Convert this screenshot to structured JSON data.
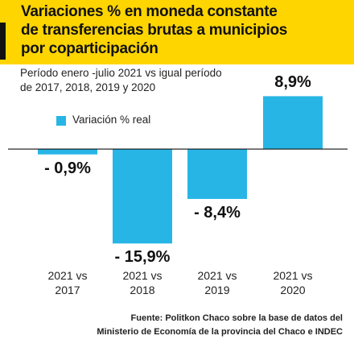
{
  "chart_data": {
    "type": "bar",
    "title": [
      "Variaciones % en moneda constante",
      "de transferencias brutas a municipios",
      "por coparticipación"
    ],
    "subtitle": [
      "Período enero -julio 2021 vs igual período",
      "de 2017, 2018, 2019 y 2020"
    ],
    "categories": [
      "2021 vs 2017",
      "2021 vs 2018",
      "2021 vs 2019",
      "2021 vs 2020"
    ],
    "series": [
      {
        "name": "Variación % real",
        "color": "#27b5e6",
        "values": [
          -0.9,
          -15.9,
          -8.4,
          8.9
        ],
        "value_labels": [
          "- 0,9%",
          "- 15,9%",
          "- 8,4%",
          "8,9%"
        ]
      }
    ],
    "ylim": [
      -16,
      9.5
    ],
    "source": [
      "Fuente: Politkon Chaco sobre la base de datos del",
      "Ministerio de Economía de la provincia del Chaco e INDEC"
    ]
  }
}
